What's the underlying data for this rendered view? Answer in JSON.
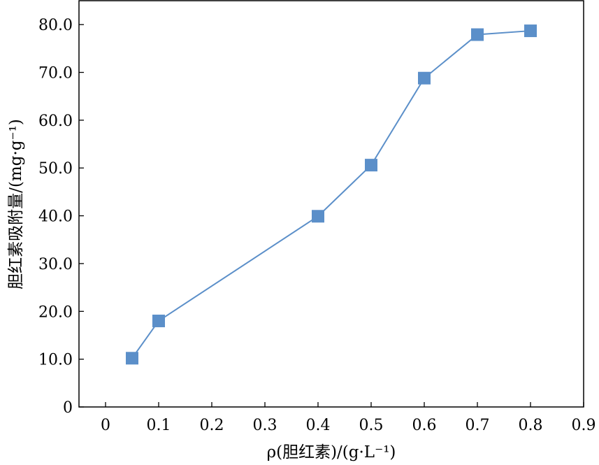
{
  "chart_data": {
    "type": "line",
    "title": "",
    "xlabel": "ρ(胆红素)/(g·L⁻¹)",
    "ylabel": "胆红素吸附量/(mg·g⁻¹)",
    "xlim": [
      -0.05,
      0.9
    ],
    "ylim": [
      0,
      85
    ],
    "x_ticks": [
      0,
      0.1,
      0.2,
      0.3,
      0.4,
      0.5,
      0.6,
      0.7,
      0.8,
      0.9
    ],
    "x_tick_labels": [
      "0",
      "0.1",
      "0.2",
      "0.3",
      "0.4",
      "0.5",
      "0.6",
      "0.7",
      "0.8",
      "0.9"
    ],
    "y_ticks": [
      0,
      10,
      20,
      30,
      40,
      50,
      60,
      70,
      80
    ],
    "y_tick_labels": [
      "0",
      "10.0",
      "20.0",
      "30.0",
      "40.0",
      "50.0",
      "60.0",
      "70.0",
      "80.0"
    ],
    "grid": false,
    "series": [
      {
        "x": [
          0.05,
          0.1,
          0.4,
          0.5,
          0.6,
          0.7,
          0.8
        ],
        "y": [
          10.2,
          18.0,
          39.9,
          50.6,
          68.8,
          77.9,
          78.7
        ],
        "color": "#5b8fc9",
        "marker": "square"
      }
    ]
  }
}
